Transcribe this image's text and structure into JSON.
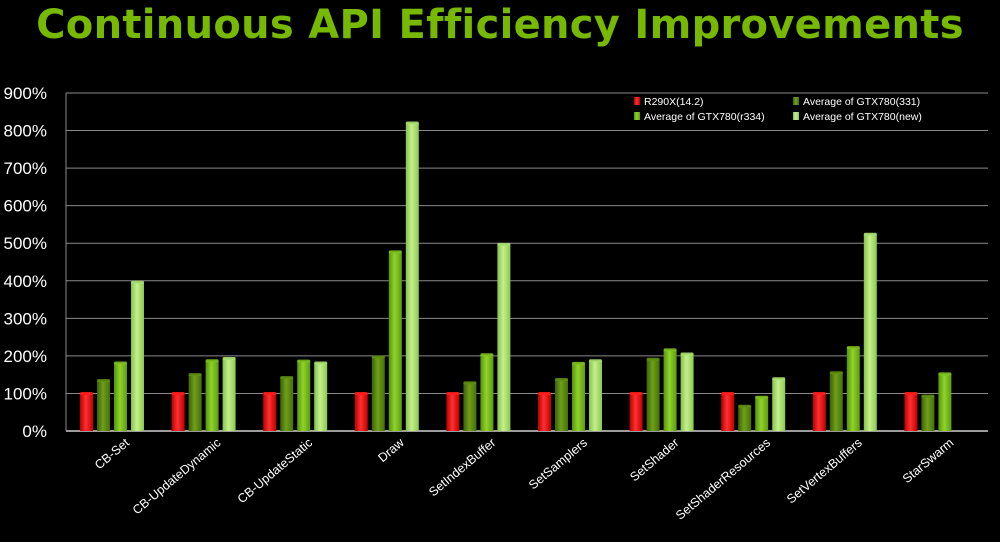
{
  "chart_data": {
    "type": "bar",
    "title": "Continuous API Efficiency Improvements",
    "xlabel": "",
    "ylabel": "",
    "ylim": [
      0,
      900
    ],
    "y_ticks": [
      "0%",
      "100%",
      "200%",
      "300%",
      "400%",
      "500%",
      "600%",
      "700%",
      "800%",
      "900%"
    ],
    "grid": true,
    "legend_position": "top-right",
    "categories": [
      "CB-Set",
      "CB-UpdateDynamic",
      "CB-UpdateStatic",
      "Draw",
      "SetIndexBuffer",
      "SetSamplers",
      "SetShader",
      "SetShaderResources",
      "SetVertexBuffers",
      "StarSwarm"
    ],
    "series": [
      {
        "name": "R290X(14.2)",
        "color": "#ff1a1a",
        "values": [
          100,
          100,
          100,
          100,
          100,
          100,
          100,
          100,
          100,
          100
        ]
      },
      {
        "name": "Average of GTX780(331)",
        "color": "#5f8f10",
        "values": [
          134,
          150,
          142,
          197,
          128,
          137,
          191,
          66,
          155,
          93
        ]
      },
      {
        "name": "Average of GTX780(r334)",
        "color": "#7cc11c",
        "values": [
          181,
          187,
          186,
          477,
          203,
          180,
          216,
          90,
          222,
          152
        ]
      },
      {
        "name": "Average of GTX780(new)",
        "color": "#a8e070",
        "values": [
          396,
          193,
          181,
          820,
          497,
          187,
          205,
          139,
          524,
          null
        ]
      }
    ]
  }
}
